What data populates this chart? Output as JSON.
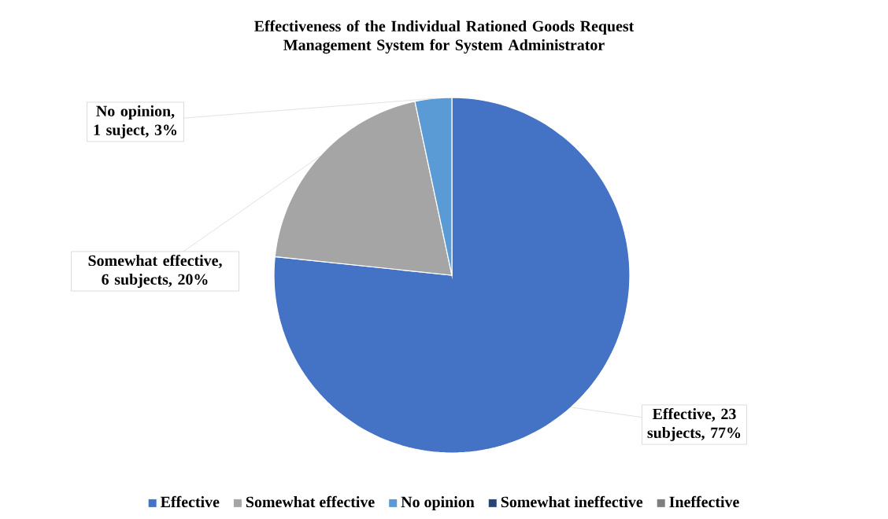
{
  "chart_data": {
    "type": "pie",
    "title": "Effectiveness of the Individual Rationed Goods Request Management System for System Administrator",
    "categories": [
      "Effective",
      "Somewhat effective",
      "No opinion",
      "Somewhat ineffective",
      "Ineffective"
    ],
    "values": [
      23,
      6,
      1,
      0,
      0
    ],
    "value_labels": [
      "Effective, 23 subjects, 77%",
      "Somewhat effective, 6 subjects, 20%",
      "No opinion, 1 suject, 3%",
      null,
      null
    ],
    "colors": [
      "#4472c4",
      "#a5a5a5",
      "#5b9bd5",
      "#264478",
      "#7f7f7f"
    ],
    "legend": "bottom"
  }
}
